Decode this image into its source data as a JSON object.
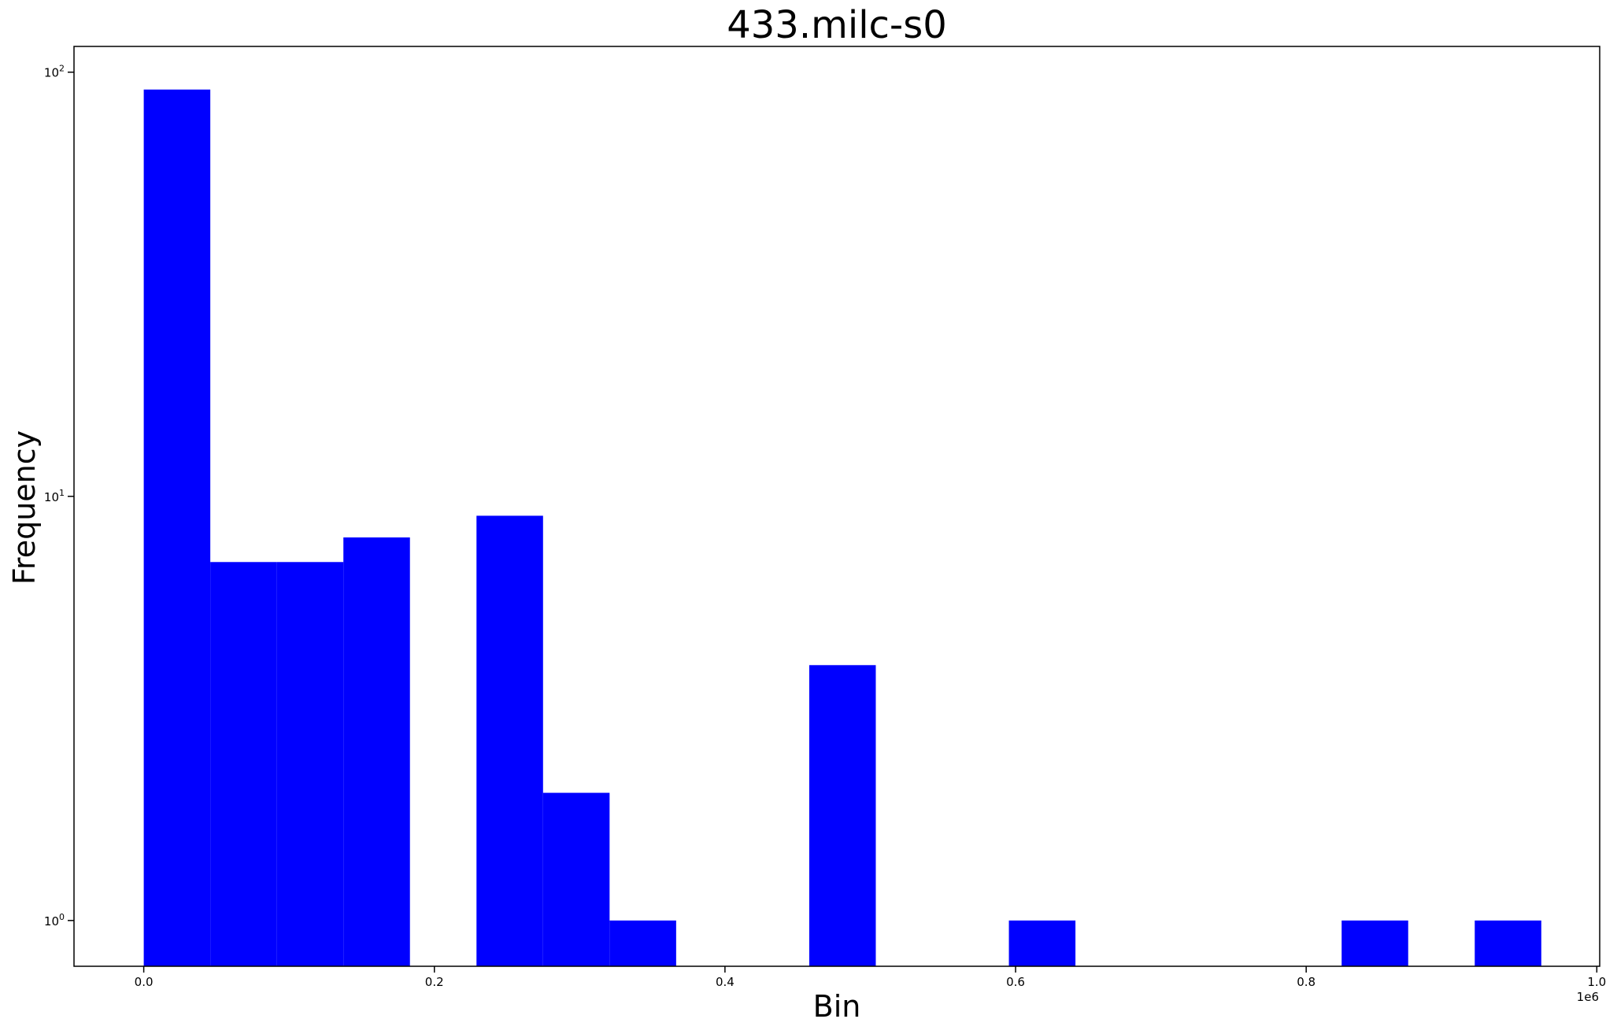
{
  "chart_data": {
    "type": "bar",
    "title": "433.milc-s0",
    "xlabel": "Bin",
    "ylabel": "Frequency",
    "x_offset_text": "1e6",
    "x_scale": 1000000,
    "xlim": [
      -48000,
      1002000
    ],
    "ylim": [
      0.78,
      115
    ],
    "y_scale": "log",
    "grid": false,
    "bar_color": "#0000ff",
    "x_ticks": [
      {
        "value": 0,
        "label": "0.0"
      },
      {
        "value": 200000,
        "label": "0.2"
      },
      {
        "value": 400000,
        "label": "0.4"
      },
      {
        "value": 600000,
        "label": "0.6"
      },
      {
        "value": 800000,
        "label": "0.8"
      },
      {
        "value": 1000000,
        "label": "1.0"
      }
    ],
    "y_ticks": [
      {
        "value": 1,
        "base": "10",
        "exp": "0"
      },
      {
        "value": 10,
        "base": "10",
        "exp": "1"
      },
      {
        "value": 100,
        "base": "10",
        "exp": "2"
      }
    ],
    "bins": [
      {
        "start": 0,
        "end": 45800,
        "count": 91
      },
      {
        "start": 45800,
        "end": 91600,
        "count": 7
      },
      {
        "start": 91600,
        "end": 137400,
        "count": 7
      },
      {
        "start": 137400,
        "end": 183200,
        "count": 8
      },
      {
        "start": 183200,
        "end": 229000,
        "count": 0
      },
      {
        "start": 229000,
        "end": 274800,
        "count": 9
      },
      {
        "start": 274800,
        "end": 320600,
        "count": 2
      },
      {
        "start": 320600,
        "end": 366400,
        "count": 1
      },
      {
        "start": 366400,
        "end": 412200,
        "count": 0
      },
      {
        "start": 412200,
        "end": 458000,
        "count": 0
      },
      {
        "start": 458000,
        "end": 503800,
        "count": 4
      },
      {
        "start": 503800,
        "end": 549600,
        "count": 0
      },
      {
        "start": 549600,
        "end": 595400,
        "count": 0
      },
      {
        "start": 595400,
        "end": 641200,
        "count": 1
      },
      {
        "start": 641200,
        "end": 687000,
        "count": 0
      },
      {
        "start": 687000,
        "end": 732800,
        "count": 0
      },
      {
        "start": 732800,
        "end": 778600,
        "count": 0
      },
      {
        "start": 778600,
        "end": 824400,
        "count": 0
      },
      {
        "start": 824400,
        "end": 870200,
        "count": 1
      },
      {
        "start": 870200,
        "end": 916000,
        "count": 0
      },
      {
        "start": 916000,
        "end": 961800,
        "count": 1
      }
    ]
  }
}
